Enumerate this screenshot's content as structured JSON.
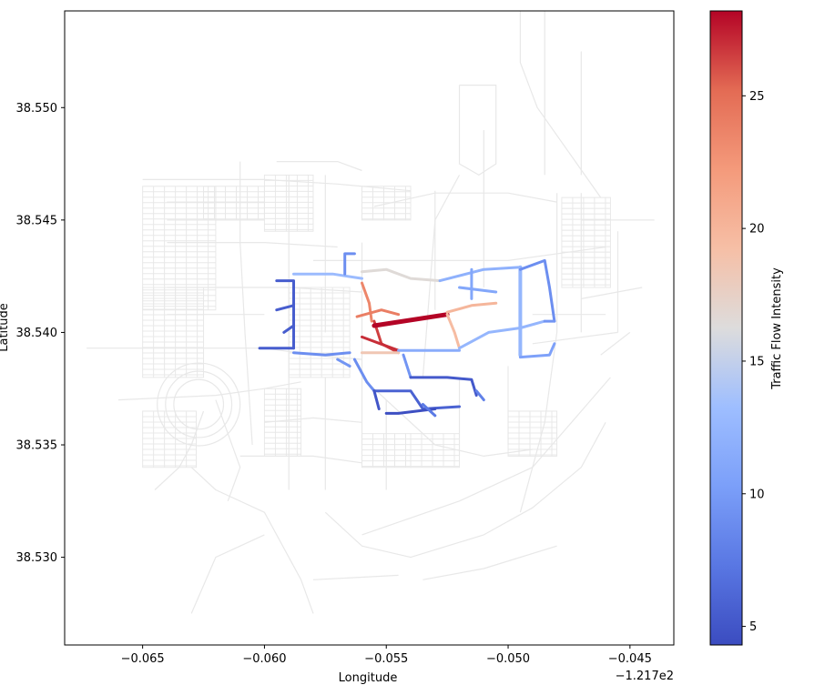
{
  "chart_data": {
    "type": "map",
    "xlabel": "Longitude",
    "ylabel": "Latitude",
    "x_offset_label": "−1.217e2",
    "xlim": [
      -0.0682,
      -0.0432
    ],
    "ylim": [
      38.5261,
      38.5543
    ],
    "x_ticks": [
      {
        "value": -0.065,
        "label": "−0.065"
      },
      {
        "value": -0.06,
        "label": "−0.060"
      },
      {
        "value": -0.055,
        "label": "−0.055"
      },
      {
        "value": -0.05,
        "label": "−0.050"
      },
      {
        "value": -0.045,
        "label": "−0.045"
      }
    ],
    "y_ticks": [
      {
        "value": 38.53,
        "label": "38.530"
      },
      {
        "value": 38.535,
        "label": "38.535"
      },
      {
        "value": 38.54,
        "label": "38.540"
      },
      {
        "value": 38.545,
        "label": "38.545"
      },
      {
        "value": 38.55,
        "label": "38.550"
      }
    ],
    "colorbar": {
      "label": "Traffic Flow Intensity",
      "colormap": "coolwarm",
      "range": [
        4.3,
        28.2
      ],
      "ticks": [
        {
          "value": 5,
          "label": "5"
        },
        {
          "value": 10,
          "label": "10"
        },
        {
          "value": 15,
          "label": "15"
        },
        {
          "value": 20,
          "label": "20"
        },
        {
          "value": 25,
          "label": "25"
        }
      ]
    },
    "background_color": "#e8e8e8",
    "background_roads": [
      [
        [
          -0.0673,
          38.5393
        ],
        [
          -0.06,
          38.5393
        ],
        [
          -0.058,
          38.539
        ],
        [
          -0.056,
          38.5388
        ]
      ],
      [
        [
          -0.066,
          38.537
        ],
        [
          -0.062,
          38.5372
        ],
        [
          -0.06,
          38.5375
        ],
        [
          -0.0585,
          38.5378
        ]
      ],
      [
        [
          -0.065,
          38.5468
        ],
        [
          -0.06,
          38.5468
        ],
        [
          -0.057,
          38.5466
        ],
        [
          -0.054,
          38.5463
        ]
      ],
      [
        [
          -0.064,
          38.542
        ],
        [
          -0.059,
          38.542
        ],
        [
          -0.056,
          38.5418
        ]
      ],
      [
        [
          -0.064,
          38.544
        ],
        [
          -0.06,
          38.544
        ],
        [
          -0.057,
          38.5438
        ]
      ],
      [
        [
          -0.064,
          38.5408
        ],
        [
          -0.06,
          38.5408
        ]
      ],
      [
        [
          -0.064,
          38.545
        ],
        [
          -0.06,
          38.545
        ]
      ],
      [
        [
          -0.064,
          38.5458
        ],
        [
          -0.06,
          38.5458
        ]
      ],
      [
        [
          -0.0595,
          38.5476
        ],
        [
          -0.057,
          38.5476
        ],
        [
          -0.056,
          38.5472
        ]
      ],
      [
        [
          -0.061,
          38.5476
        ],
        [
          -0.061,
          38.544
        ],
        [
          -0.0608,
          38.54
        ],
        [
          -0.0605,
          38.535
        ]
      ],
      [
        [
          -0.059,
          38.547
        ],
        [
          -0.059,
          38.535
        ],
        [
          -0.059,
          38.533
        ]
      ],
      [
        [
          -0.0575,
          38.547
        ],
        [
          -0.0575,
          38.54
        ]
      ],
      [
        [
          -0.056,
          38.544
        ],
        [
          -0.056,
          38.535
        ]
      ],
      [
        [
          -0.053,
          38.5463
        ],
        [
          -0.053,
          38.541
        ]
      ],
      [
        [
          -0.051,
          38.549
        ],
        [
          -0.051,
          38.542
        ]
      ],
      [
        [
          -0.0555,
          38.5456
        ],
        [
          -0.053,
          38.5462
        ],
        [
          -0.05,
          38.5462
        ],
        [
          -0.048,
          38.5458
        ]
      ],
      [
        [
          -0.058,
          38.5432
        ],
        [
          -0.054,
          38.5432
        ],
        [
          -0.05,
          38.5432
        ],
        [
          -0.046,
          38.5438
        ]
      ],
      [
        [
          -0.047,
          38.545
        ],
        [
          -0.044,
          38.545
        ]
      ],
      [
        [
          -0.048,
          38.5462
        ],
        [
          -0.048,
          38.54
        ],
        [
          -0.0485,
          38.536
        ],
        [
          -0.0495,
          38.532
        ]
      ],
      [
        [
          -0.047,
          38.5462
        ],
        [
          -0.047,
          38.54
        ]
      ],
      [
        [
          -0.0455,
          38.5445
        ],
        [
          -0.0455,
          38.54
        ]
      ],
      [
        [
          -0.047,
          38.5415
        ],
        [
          -0.0445,
          38.542
        ]
      ],
      [
        [
          -0.049,
          38.5408
        ],
        [
          -0.046,
          38.5408
        ]
      ],
      [
        [
          -0.049,
          38.5395
        ],
        [
          -0.0455,
          38.54
        ]
      ],
      [
        [
          -0.0495,
          38.555
        ],
        [
          -0.0495,
          38.552
        ],
        [
          -0.0488,
          38.55
        ],
        [
          -0.0475,
          38.548
        ],
        [
          -0.0462,
          38.546
        ]
      ],
      [
        [
          -0.0485,
          38.555
        ],
        [
          -0.0485,
          38.547
        ]
      ],
      [
        [
          -0.047,
          38.5525
        ],
        [
          -0.047,
          38.547
        ]
      ],
      [
        [
          -0.052,
          38.551
        ],
        [
          -0.0505,
          38.551
        ],
        [
          -0.0505,
          38.5475
        ],
        [
          -0.0512,
          38.547
        ],
        [
          -0.052,
          38.5475
        ],
        [
          -0.052,
          38.551
        ]
      ],
      [
        [
          -0.052,
          38.547
        ],
        [
          -0.053,
          38.545
        ],
        [
          -0.0535,
          38.538
        ]
      ],
      [
        [
          -0.063,
          38.534
        ],
        [
          -0.062,
          38.533
        ],
        [
          -0.06,
          38.532
        ],
        [
          -0.0585,
          38.529
        ],
        [
          -0.058,
          38.5275
        ]
      ],
      [
        [
          -0.063,
          38.5275
        ],
        [
          -0.062,
          38.53
        ],
        [
          -0.06,
          38.531
        ]
      ],
      [
        [
          -0.0575,
          38.532
        ],
        [
          -0.056,
          38.5305
        ],
        [
          -0.054,
          38.53
        ],
        [
          -0.051,
          38.531
        ],
        [
          -0.049,
          38.5322
        ],
        [
          -0.047,
          38.534
        ],
        [
          -0.046,
          38.536
        ]
      ],
      [
        [
          -0.056,
          38.531
        ],
        [
          -0.052,
          38.5325
        ],
        [
          -0.049,
          38.534
        ],
        [
          -0.047,
          38.5365
        ],
        [
          -0.0458,
          38.538
        ]
      ],
      [
        [
          -0.0535,
          38.529
        ],
        [
          -0.051,
          38.5295
        ],
        [
          -0.048,
          38.5305
        ]
      ],
      [
        [
          -0.058,
          38.529
        ],
        [
          -0.0545,
          38.5292
        ]
      ],
      [
        [
          -0.056,
          38.538
        ],
        [
          -0.0545,
          38.5365
        ],
        [
          -0.053,
          38.535
        ],
        [
          -0.051,
          38.5345
        ],
        [
          -0.049,
          38.5348
        ]
      ],
      [
        [
          -0.06,
          38.536
        ],
        [
          -0.058,
          38.5362
        ],
        [
          -0.056,
          38.536
        ]
      ],
      [
        [
          -0.061,
          38.5345
        ],
        [
          -0.058,
          38.5345
        ],
        [
          -0.056,
          38.5342
        ]
      ],
      [
        [
          -0.0625,
          38.5365
        ],
        [
          -0.063,
          38.535
        ],
        [
          -0.0635,
          38.534
        ],
        [
          -0.0645,
          38.533
        ]
      ],
      [
        [
          -0.062,
          38.537
        ],
        [
          -0.061,
          38.534
        ],
        [
          -0.0615,
          38.5325
        ]
      ],
      [
        [
          -0.0575,
          38.538
        ],
        [
          -0.0575,
          38.533
        ]
      ],
      [
        [
          -0.055,
          38.537
        ],
        [
          -0.055,
          38.533
        ]
      ],
      [
        [
          -0.052,
          38.538
        ],
        [
          -0.052,
          38.5345
        ]
      ],
      [
        [
          -0.05,
          38.5385
        ],
        [
          -0.05,
          38.535
        ]
      ],
      [
        [
          -0.0462,
          38.539
        ],
        [
          -0.045,
          38.54
        ]
      ]
    ],
    "background_blocks": [
      {
        "x0": -0.065,
        "y0": 38.541,
        "x1": -0.062,
        "y1": 38.5465
      },
      {
        "x0": -0.0625,
        "y0": 38.545,
        "x1": -0.06,
        "y1": 38.5465
      },
      {
        "x0": -0.06,
        "y0": 38.5445,
        "x1": -0.058,
        "y1": 38.547
      },
      {
        "x0": -0.065,
        "y0": 38.538,
        "x1": -0.0625,
        "y1": 38.542
      },
      {
        "x0": -0.065,
        "y0": 38.534,
        "x1": -0.0628,
        "y1": 38.5365
      },
      {
        "x0": -0.06,
        "y0": 38.5345,
        "x1": -0.0585,
        "y1": 38.5375
      },
      {
        "x0": -0.056,
        "y0": 38.545,
        "x1": -0.054,
        "y1": 38.5465
      },
      {
        "x0": -0.056,
        "y0": 38.534,
        "x1": -0.054,
        "y1": 38.5355
      },
      {
        "x0": -0.054,
        "y0": 38.534,
        "x1": -0.052,
        "y1": 38.5355
      },
      {
        "x0": -0.05,
        "y0": 38.5345,
        "x1": -0.048,
        "y1": 38.5365
      },
      {
        "x0": -0.0478,
        "y0": 38.542,
        "x1": -0.0458,
        "y1": 38.546
      },
      {
        "x0": -0.059,
        "y0": 38.538,
        "x1": -0.0565,
        "y1": 38.542
      }
    ],
    "background_circle": {
      "cx": -0.0627,
      "cy": 38.5368,
      "r": 0.0017
    },
    "segments": [
      {
        "v": 5.5,
        "pts": [
          [
            -0.0602,
            38.5393
          ],
          [
            -0.0588,
            38.5393
          ]
        ]
      },
      {
        "v": 5.5,
        "pts": [
          [
            -0.0588,
            38.5393
          ],
          [
            -0.0588,
            38.5423
          ],
          [
            -0.0595,
            38.5423
          ]
        ]
      },
      {
        "v": 5.5,
        "pts": [
          [
            -0.0595,
            38.541
          ],
          [
            -0.0588,
            38.5412
          ]
        ]
      },
      {
        "v": 5.5,
        "pts": [
          [
            -0.0592,
            38.54
          ],
          [
            -0.0588,
            38.5403
          ]
        ]
      },
      {
        "v": 9.0,
        "pts": [
          [
            -0.0588,
            38.5391
          ],
          [
            -0.0575,
            38.539
          ],
          [
            -0.0565,
            38.5391
          ]
        ]
      },
      {
        "v": 9.5,
        "pts": [
          [
            -0.057,
            38.5388
          ],
          [
            -0.0565,
            38.5385
          ]
        ]
      },
      {
        "v": 13.0,
        "pts": [
          [
            -0.0588,
            38.5426
          ],
          [
            -0.0572,
            38.5426
          ],
          [
            -0.056,
            38.5424
          ]
        ]
      },
      {
        "v": 9.0,
        "pts": [
          [
            -0.0567,
            38.5426
          ],
          [
            -0.0567,
            38.5435
          ],
          [
            -0.0563,
            38.5435
          ]
        ]
      },
      {
        "v": 16.5,
        "pts": [
          [
            -0.056,
            38.5427
          ],
          [
            -0.055,
            38.5428
          ],
          [
            -0.054,
            38.5424
          ],
          [
            -0.0528,
            38.5423
          ]
        ]
      },
      {
        "v": 23.5,
        "pts": [
          [
            -0.056,
            38.5422
          ],
          [
            -0.0557,
            38.5413
          ],
          [
            -0.0556,
            38.5405
          ]
        ]
      },
      {
        "v": 24.0,
        "pts": [
          [
            -0.0562,
            38.5407
          ],
          [
            -0.0552,
            38.541
          ],
          [
            -0.0545,
            38.5408
          ]
        ]
      },
      {
        "v": 26.5,
        "pts": [
          [
            -0.0555,
            38.5405
          ],
          [
            -0.0552,
            38.5395
          ],
          [
            -0.0545,
            38.5391
          ]
        ]
      },
      {
        "v": 27.0,
        "pts": [
          [
            -0.056,
            38.5398
          ],
          [
            -0.055,
            38.5394
          ],
          [
            -0.0545,
            38.5392
          ]
        ]
      },
      {
        "v": 28.2,
        "pts": [
          [
            -0.0555,
            38.5403
          ],
          [
            -0.0525,
            38.5408
          ]
        ],
        "w": 5
      },
      {
        "v": 18.5,
        "pts": [
          [
            -0.056,
            38.5391
          ],
          [
            -0.0545,
            38.5391
          ]
        ]
      },
      {
        "v": 11.5,
        "pts": [
          [
            -0.0545,
            38.5392
          ],
          [
            -0.0528,
            38.5392
          ],
          [
            -0.052,
            38.5392
          ]
        ]
      },
      {
        "v": 19.5,
        "pts": [
          [
            -0.0525,
            38.5408
          ],
          [
            -0.0522,
            38.54
          ],
          [
            -0.052,
            38.5393
          ]
        ]
      },
      {
        "v": 20.0,
        "pts": [
          [
            -0.0525,
            38.5409
          ],
          [
            -0.0515,
            38.5412
          ],
          [
            -0.0505,
            38.5413
          ]
        ]
      },
      {
        "v": 12.0,
        "pts": [
          [
            -0.0528,
            38.5423
          ],
          [
            -0.051,
            38.5428
          ],
          [
            -0.0495,
            38.5429
          ]
        ]
      },
      {
        "v": 12.5,
        "pts": [
          [
            -0.052,
            38.5393
          ],
          [
            -0.0508,
            38.54
          ],
          [
            -0.0495,
            38.5402
          ],
          [
            -0.0485,
            38.5405
          ]
        ]
      },
      {
        "v": 12.5,
        "pts": [
          [
            -0.0495,
            38.5429
          ],
          [
            -0.0495,
            38.539
          ]
        ],
        "w": 4
      },
      {
        "v": 9.0,
        "pts": [
          [
            -0.0495,
            38.5428
          ],
          [
            -0.0485,
            38.5432
          ],
          [
            -0.0483,
            38.542
          ],
          [
            -0.0481,
            38.5405
          ]
        ]
      },
      {
        "v": 10.5,
        "pts": [
          [
            -0.0495,
            38.5389
          ],
          [
            -0.0483,
            38.539
          ],
          [
            -0.0481,
            38.5395
          ]
        ]
      },
      {
        "v": 9.5,
        "pts": [
          [
            -0.0485,
            38.5405
          ],
          [
            -0.0481,
            38.5405
          ]
        ]
      },
      {
        "v": 11.0,
        "pts": [
          [
            -0.052,
            38.542
          ],
          [
            -0.0505,
            38.5418
          ]
        ]
      },
      {
        "v": 11.0,
        "pts": [
          [
            -0.0515,
            38.5428
          ],
          [
            -0.0515,
            38.5415
          ]
        ]
      },
      {
        "v": 9.0,
        "pts": [
          [
            -0.0563,
            38.5388
          ],
          [
            -0.0558,
            38.5378
          ],
          [
            -0.0555,
            38.5374
          ]
        ]
      },
      {
        "v": 9.5,
        "pts": [
          [
            -0.0543,
            38.539
          ],
          [
            -0.054,
            38.538
          ]
        ]
      },
      {
        "v": 5.8,
        "pts": [
          [
            -0.0555,
            38.5374
          ],
          [
            -0.054,
            38.5374
          ],
          [
            -0.0535,
            38.5366
          ],
          [
            -0.052,
            38.5367
          ]
        ]
      },
      {
        "v": 5.0,
        "pts": [
          [
            -0.0555,
            38.5374
          ],
          [
            -0.0553,
            38.5366
          ]
        ]
      },
      {
        "v": 5.2,
        "pts": [
          [
            -0.054,
            38.538
          ],
          [
            -0.0525,
            38.538
          ],
          [
            -0.0515,
            38.5379
          ],
          [
            -0.0513,
            38.5372
          ]
        ]
      },
      {
        "v": 4.5,
        "pts": [
          [
            -0.055,
            38.5364
          ],
          [
            -0.0545,
            38.5364
          ],
          [
            -0.053,
            38.5366
          ]
        ]
      },
      {
        "v": 7.5,
        "pts": [
          [
            -0.0535,
            38.5368
          ],
          [
            -0.053,
            38.5363
          ]
        ]
      },
      {
        "v": 8.0,
        "pts": [
          [
            -0.0513,
            38.5374
          ],
          [
            -0.051,
            38.537
          ]
        ]
      }
    ]
  }
}
